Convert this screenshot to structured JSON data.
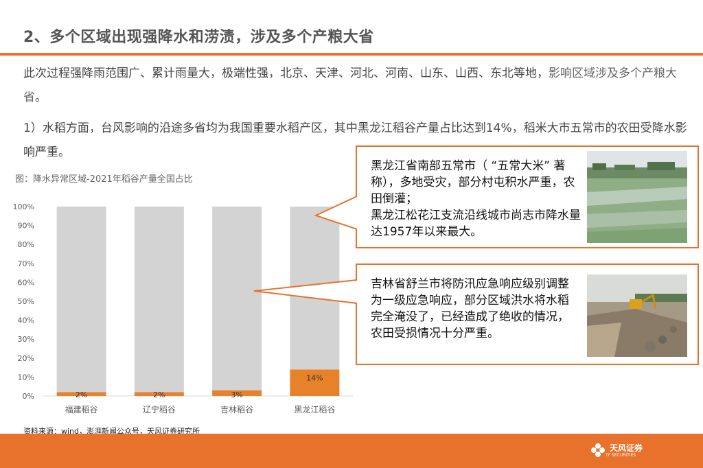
{
  "header": {
    "title": "2、多个区域出现强降水和涝渍，涉及多个产粮大省"
  },
  "paragraphs": {
    "p1_main": "此次过程强降雨范围广、累计雨量大，极端性强，北京、天津、河北、河南、山东、山西、东北等地，",
    "p1_emph": "影响区域涉及多个产粮大省",
    "p1_end": "。",
    "p2": "1）水稻方面，台风影响的沿途多省均为我国重要水稻产区，其中黑龙江稻谷产量占比达到14%，稻米大市五常市的农田受降水影响严重。"
  },
  "figure": {
    "caption": "图：降水异常区域-2021年稻谷产量全国占比"
  },
  "chart_data": {
    "type": "bar",
    "stacked": true,
    "categories": [
      "福建稻谷",
      "辽宁稻谷",
      "吉林稻谷",
      "黑龙江稻谷"
    ],
    "series": [
      {
        "values": [
          2,
          2,
          3,
          14
        ],
        "color": "#e8822a"
      },
      {
        "values": [
          98,
          98,
          97,
          86
        ],
        "color": "#d3d3d3"
      }
    ],
    "data_labels": [
      "2%",
      "2%",
      "3%",
      "14%"
    ],
    "yticks": [
      "0%",
      "10%",
      "20%",
      "30%",
      "40%",
      "50%",
      "60%",
      "70%",
      "80%",
      "90%",
      "100%"
    ],
    "ylim": [
      0,
      100
    ],
    "grid": false
  },
  "callouts": {
    "c1": "黑龙江省南部五常市（ “五常大米” 著称），多地受灾，部分村屯积水严重，农田倒灌；\n黑龙江松花江支流沿线城市尚志市降水量达1957年以来最大。",
    "c2": "吉林省舒兰市将防汛应急响应级别调整为一级应急响应，部分区域洪水将水稻完全淹没了，已经造成了绝收的情况，农田受损情况十分严重。"
  },
  "source": "资料来源：wind，澎湃新闻公众号，天风证券研究所",
  "footer": {
    "logo_name": "天风证券",
    "logo_sub": "TF SECURITIES"
  },
  "colors": {
    "accent": "#e8722c",
    "bar_fill": "#e8822a",
    "bar_bg": "#d3d3d3"
  }
}
